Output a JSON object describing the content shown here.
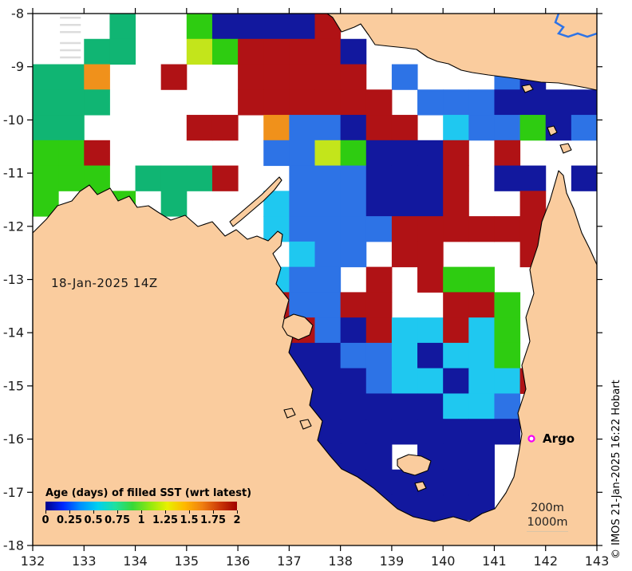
{
  "figure": {
    "date_label": "18-Jan-2025 14Z",
    "argo_label": "Argo",
    "depth_labels": [
      "200m",
      "1000m"
    ],
    "copyright": "© IMOS 21-Jan-2025 16:22 Hobart"
  },
  "axes": {
    "x_range": [
      132,
      143
    ],
    "y_range": [
      -8,
      -18
    ],
    "x_ticks": [
      132,
      133,
      134,
      135,
      136,
      137,
      138,
      139,
      140,
      141,
      142,
      143
    ],
    "y_ticks": [
      -8,
      -9,
      -10,
      -11,
      -12,
      -13,
      -14,
      -15,
      -16,
      -17,
      -18
    ]
  },
  "legend": {
    "title": "Age (days) of filled SST (wrt latest)",
    "tick_labels": [
      "0",
      "0.25",
      "0.5",
      "0.75",
      "1",
      "1.25",
      "1.5",
      "1.75",
      "2"
    ],
    "gradient": [
      "#000088",
      "#0028FF",
      "#0090FF",
      "#00D0F0",
      "#20E0A0",
      "#38D838",
      "#90E810",
      "#E8F000",
      "#FFB800",
      "#F08010",
      "#CC3808",
      "#A00000"
    ]
  },
  "map": {
    "colors": {
      "land": "#FACC9E",
      "coast": "#000000",
      "N": "#12189E",
      "B": "#2D73E6",
      "C": "#1FC8F0",
      "T": "#10B573",
      "G": "#2ECC11",
      "Y": "#C3E51B",
      "O": "#F0911B",
      "R": "#B01215",
      "E": "#DCDCDC"
    },
    "argo_marker_color": "#F500F5",
    "grid_cols": 22,
    "grid_rows": 21,
    "cells": [
      ".E.T..GNNNNR..........",
      ".ETT..YGRRRRN.........",
      "TTO..R..RRRRR.B...BN..",
      "TTT.....RRRRRR.BBBNNNN",
      "TT....RR.OBBNRR.CBBGNB",
      "GGR......BBYGNNNR.R...",
      "GGG.TTTR..BBBNNNR.NN.N",
      "G.GG.T...CBBBNNNR..R..",
      ".G.......CBBBBRRRRRR..",
      "..........CBB.RR...R..",
      ".........CBB.R.RGG....",
      ".........RBBRR..RRG...",
      "..........RBNRCCRCG...",
      "........RNNNBBCNCCG...",
      ".........NNNNBCCNCCR..",
      ".........NNNNNNNCCB...",
      ".........NNNNNNNNNN...",
      "...........NNN.NNN....",
      "............NNNNNN....",
      ".............NNNNN....",
      "..............NN......"
    ]
  }
}
